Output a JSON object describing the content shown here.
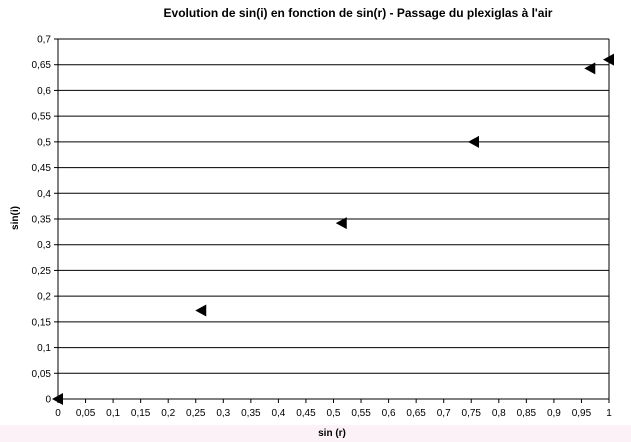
{
  "chart_data": {
    "type": "scatter",
    "title": "Evolution de sin(i) en fonction de sin(r) - Passage du plexiglas à l'air",
    "xlabel": "sin (r)",
    "ylabel": "sin(i)",
    "xlim": [
      0,
      1
    ],
    "ylim": [
      0,
      0.7
    ],
    "x_ticks": [
      "0",
      "0,05",
      "0,1",
      "0,15",
      "0,2",
      "0,25",
      "0,3",
      "0,35",
      "0,4",
      "0,45",
      "0,5",
      "0,55",
      "0,6",
      "0,65",
      "0,7",
      "0,75",
      "0,8",
      "0,85",
      "0,9",
      "0,95",
      "1"
    ],
    "y_ticks": [
      "0",
      "0,05",
      "0,1",
      "0,15",
      "0,2",
      "0,25",
      "0,3",
      "0,35",
      "0,4",
      "0,45",
      "0,5",
      "0,55",
      "0,6",
      "0,65",
      "0,7"
    ],
    "grid": "horizontal",
    "marker": "left-triangle",
    "marker_color": "#000000",
    "points": [
      {
        "x": 0,
        "y": 0
      },
      {
        "x": 0.26,
        "y": 0.172
      },
      {
        "x": 0.515,
        "y": 0.342
      },
      {
        "x": 0.755,
        "y": 0.5
      },
      {
        "x": 0.966,
        "y": 0.643
      },
      {
        "x": 1.0,
        "y": 0.66
      }
    ]
  }
}
